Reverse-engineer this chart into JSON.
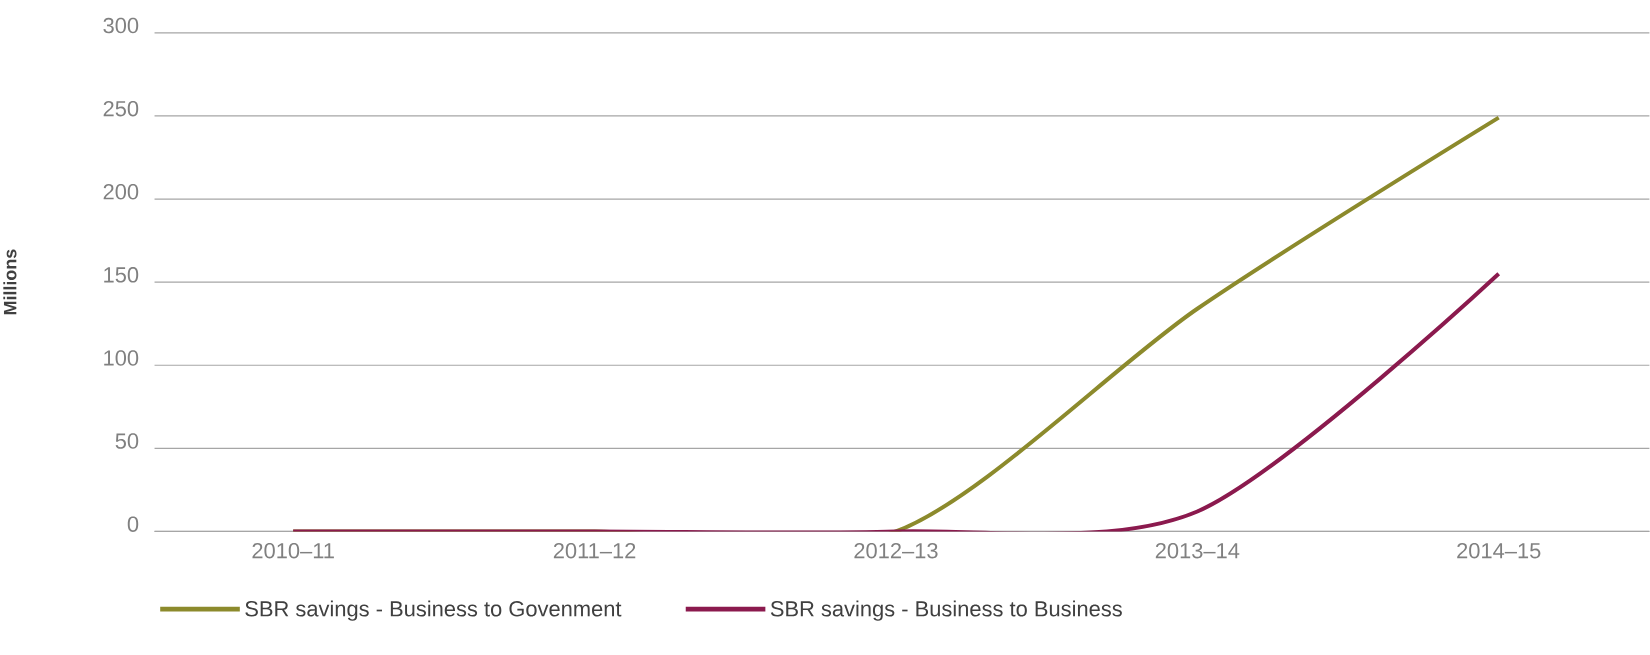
{
  "chart_data": {
    "type": "line",
    "ylabel": "Millions",
    "categories": [
      "2010–11",
      "2011–12",
      "2012–13",
      "2013–14",
      "2014–15"
    ],
    "series": [
      {
        "name": "SBR savings - Business to Govenment",
        "color": "#8c8a2c",
        "values": [
          0,
          0,
          0,
          134,
          249
        ]
      },
      {
        "name": "SBR savings - Business to Business",
        "color": "#8b1a4e",
        "values": [
          0,
          0,
          0,
          12,
          155
        ]
      }
    ],
    "ylim": [
      0,
      300
    ],
    "yticks": [
      0,
      50,
      100,
      150,
      200,
      250,
      300
    ],
    "grid": "y",
    "legend": "bottom",
    "marker": "none",
    "line_style": "solid"
  }
}
